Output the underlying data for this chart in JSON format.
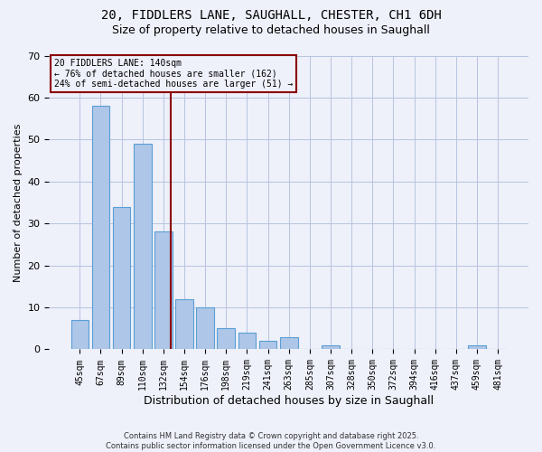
{
  "title1": "20, FIDDLERS LANE, SAUGHALL, CHESTER, CH1 6DH",
  "title2": "Size of property relative to detached houses in Saughall",
  "categories": [
    "45sqm",
    "67sqm",
    "89sqm",
    "110sqm",
    "132sqm",
    "154sqm",
    "176sqm",
    "198sqm",
    "219sqm",
    "241sqm",
    "263sqm",
    "285sqm",
    "307sqm",
    "328sqm",
    "350sqm",
    "372sqm",
    "394sqm",
    "416sqm",
    "437sqm",
    "459sqm",
    "481sqm"
  ],
  "values": [
    7,
    58,
    34,
    49,
    28,
    12,
    10,
    5,
    4,
    2,
    3,
    0,
    1,
    0,
    0,
    0,
    0,
    0,
    0,
    1,
    0
  ],
  "bar_color": "#aec6e8",
  "bar_edgecolor": "#5a9fd4",
  "ylabel": "Number of detached properties",
  "xlabel": "Distribution of detached houses by size in Saughall",
  "ylim": [
    0,
    70
  ],
  "yticks": [
    0,
    10,
    20,
    30,
    40,
    50,
    60,
    70
  ],
  "vline_color": "#8b0000",
  "annotation_text": "20 FIDDLERS LANE: 140sqm\n← 76% of detached houses are smaller (162)\n24% of semi-detached houses are larger (51) →",
  "bg_color": "#eef0fa",
  "footer": "Contains HM Land Registry data © Crown copyright and database right 2025.\nContains public sector information licensed under the Open Government Licence v3.0.",
  "title_fontsize": 10,
  "subtitle_fontsize": 9,
  "tick_fontsize": 7,
  "ylabel_fontsize": 8,
  "xlabel_fontsize": 9
}
